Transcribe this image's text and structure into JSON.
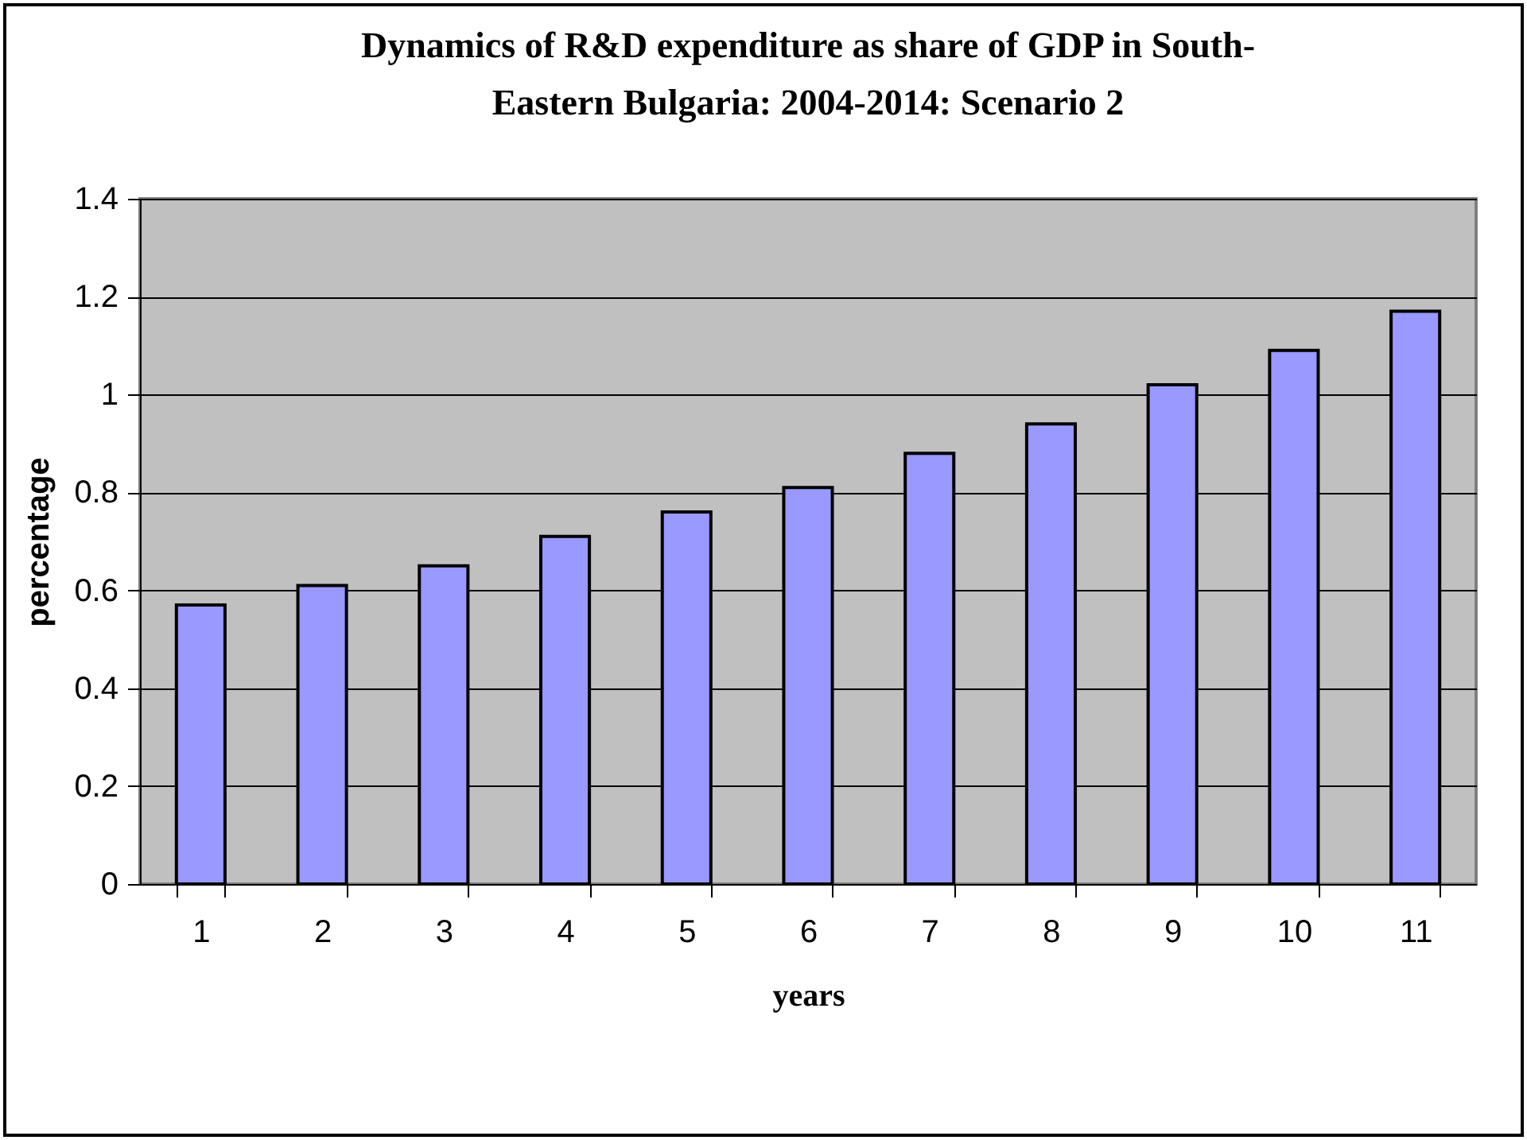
{
  "chart_data": {
    "type": "bar",
    "title": "Dynamics of R&D expenditure as share of GDP in South-Eastern Bulgaria: 2004-2014: Scenario 2",
    "xlabel": "years",
    "ylabel": "percentage",
    "categories": [
      "1",
      "2",
      "3",
      "4",
      "5",
      "6",
      "7",
      "8",
      "9",
      "10",
      "11"
    ],
    "values": [
      0.57,
      0.61,
      0.65,
      0.71,
      0.76,
      0.81,
      0.88,
      0.94,
      1.02,
      1.09,
      1.17
    ],
    "color": "#9999ff",
    "ylim": [
      0,
      1.4
    ],
    "yticks": [
      0,
      0.2,
      0.4,
      0.6,
      0.8,
      1,
      1.2,
      1.4
    ],
    "grid": "y"
  }
}
